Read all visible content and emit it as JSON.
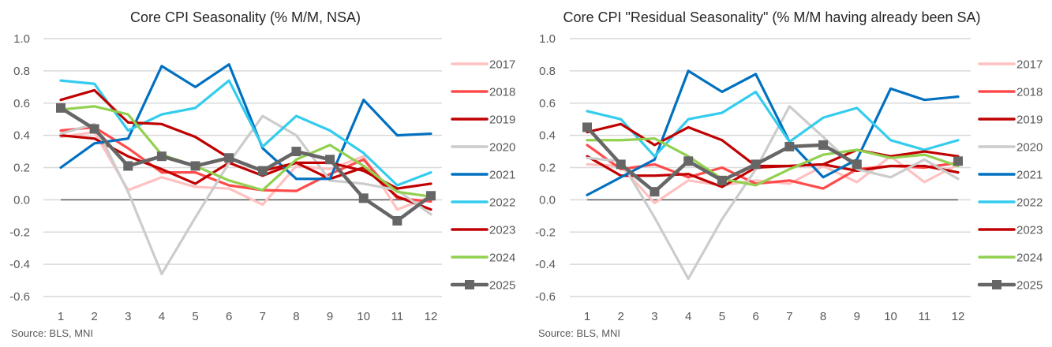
{
  "chart_data": [
    {
      "type": "line",
      "title": "Core CPI Seasonality (% M/M, NSA)",
      "xlabel": "",
      "ylabel": "",
      "x": [
        1,
        2,
        3,
        4,
        5,
        6,
        7,
        8,
        9,
        10,
        11,
        12
      ],
      "x_tick_labels": [
        "1",
        "2",
        "3",
        "4",
        "5",
        "6",
        "7",
        "8",
        "9",
        "10",
        "11",
        "12"
      ],
      "ylim": [
        -0.6,
        1.0
      ],
      "y_ticks": [
        1.0,
        0.8,
        0.6,
        0.4,
        0.2,
        0.0,
        -0.2,
        -0.4,
        -0.6
      ],
      "y_tick_labels": [
        "1.0",
        "0.8",
        "0.6",
        "0.4",
        "0.2",
        "0.0",
        "-0.2",
        "-0.4",
        "-0.6"
      ],
      "grid": true,
      "legend_position": "right",
      "source": "Source: BLS, MNI",
      "series": [
        {
          "name": "2017",
          "color": "#FFC0C0",
          "marker": false,
          "values": [
            0.39,
            0.42,
            0.06,
            0.14,
            0.08,
            0.07,
            -0.03,
            0.21,
            0.19,
            0.27,
            -0.06,
            0.02
          ]
        },
        {
          "name": "2018",
          "color": "#FF4B4B",
          "marker": false,
          "values": [
            0.43,
            0.45,
            0.32,
            0.17,
            0.17,
            0.09,
            0.06,
            0.055,
            0.16,
            0.25,
            0.01,
            -0.01
          ]
        },
        {
          "name": "2019",
          "color": "#C00000",
          "marker": false,
          "values": [
            0.4,
            0.38,
            0.27,
            0.19,
            0.1,
            0.23,
            0.15,
            0.23,
            0.13,
            0.2,
            0.02,
            -0.06
          ]
        },
        {
          "name": "2020",
          "color": "#CCCCCC",
          "marker": false,
          "values": [
            0.41,
            0.47,
            0.05,
            -0.46,
            -0.11,
            0.23,
            0.52,
            0.4,
            0.12,
            0.1,
            0.06,
            -0.09
          ]
        },
        {
          "name": "2021",
          "color": "#0070C0",
          "marker": false,
          "values": [
            0.2,
            0.35,
            0.38,
            0.83,
            0.7,
            0.84,
            0.32,
            0.13,
            0.13,
            0.62,
            0.4,
            0.41
          ]
        },
        {
          "name": "2022",
          "color": "#33CCEE",
          "marker": false,
          "values": [
            0.74,
            0.72,
            0.43,
            0.53,
            0.57,
            0.74,
            0.33,
            0.52,
            0.43,
            0.29,
            0.09,
            0.17
          ]
        },
        {
          "name": "2023",
          "color": "#C00000",
          "marker": false,
          "values": [
            0.62,
            0.68,
            0.48,
            0.47,
            0.39,
            0.26,
            0.18,
            0.23,
            0.23,
            0.18,
            0.07,
            0.1
          ]
        },
        {
          "name": "2024",
          "color": "#92D050",
          "marker": false,
          "values": [
            0.56,
            0.58,
            0.53,
            0.28,
            0.21,
            0.12,
            0.06,
            0.25,
            0.34,
            0.21,
            0.05,
            0.02
          ]
        },
        {
          "name": "2025",
          "color": "#666666",
          "marker": true,
          "values": [
            0.57,
            0.44,
            0.21,
            0.27,
            0.21,
            0.26,
            0.18,
            0.3,
            0.25,
            0.01,
            -0.13,
            0.025
          ]
        }
      ]
    },
    {
      "type": "line",
      "title": "Core CPI \"Residual Seasonality\" (% M/M having already been SA)",
      "xlabel": "",
      "ylabel": "",
      "x": [
        1,
        2,
        3,
        4,
        5,
        6,
        7,
        8,
        9,
        10,
        11,
        12
      ],
      "x_tick_labels": [
        "1",
        "2",
        "3",
        "4",
        "5",
        "6",
        "7",
        "8",
        "9",
        "10",
        "11",
        "12"
      ],
      "ylim": [
        -0.6,
        1.0
      ],
      "y_ticks": [
        1.0,
        0.8,
        0.6,
        0.4,
        0.2,
        0.0,
        -0.2,
        -0.4,
        -0.6
      ],
      "y_tick_labels": [
        "1.0",
        "0.8",
        "0.6",
        "0.4",
        "0.2",
        "0.0",
        "-0.2",
        "-0.4",
        "-0.6"
      ],
      "grid": true,
      "legend_position": "right",
      "source": "Source: BLS, MNI",
      "series": [
        {
          "name": "2017",
          "color": "#FFC0C0",
          "marker": false,
          "values": [
            0.22,
            0.21,
            -0.02,
            0.12,
            0.09,
            0.12,
            0.1,
            0.21,
            0.11,
            0.27,
            0.11,
            0.22
          ]
        },
        {
          "name": "2018",
          "color": "#FF4B4B",
          "marker": false,
          "values": [
            0.34,
            0.19,
            0.22,
            0.14,
            0.2,
            0.1,
            0.12,
            0.07,
            0.19,
            0.21,
            0.2,
            0.23
          ]
        },
        {
          "name": "2019",
          "color": "#C00000",
          "marker": false,
          "values": [
            0.27,
            0.15,
            0.15,
            0.16,
            0.08,
            0.2,
            0.21,
            0.22,
            0.18,
            0.21,
            0.21,
            0.17
          ]
        },
        {
          "name": "2020",
          "color": "#CCCCCC",
          "marker": false,
          "values": [
            0.26,
            0.24,
            -0.11,
            -0.49,
            -0.12,
            0.19,
            0.58,
            0.39,
            0.19,
            0.14,
            0.25,
            0.13
          ]
        },
        {
          "name": "2021",
          "color": "#0070C0",
          "marker": false,
          "values": [
            0.03,
            0.14,
            0.25,
            0.8,
            0.67,
            0.78,
            0.36,
            0.14,
            0.25,
            0.69,
            0.62,
            0.64
          ]
        },
        {
          "name": "2022",
          "color": "#33CCEE",
          "marker": false,
          "values": [
            0.55,
            0.5,
            0.27,
            0.5,
            0.54,
            0.67,
            0.36,
            0.51,
            0.57,
            0.37,
            0.31,
            0.37
          ]
        },
        {
          "name": "2023",
          "color": "#C00000",
          "marker": false,
          "values": [
            0.42,
            0.47,
            0.34,
            0.45,
            0.37,
            0.21,
            0.21,
            0.22,
            0.31,
            0.27,
            0.3,
            0.27
          ]
        },
        {
          "name": "2024",
          "color": "#92D050",
          "marker": false,
          "values": [
            0.37,
            0.37,
            0.38,
            0.27,
            0.13,
            0.09,
            0.19,
            0.28,
            0.31,
            0.26,
            0.28,
            0.21
          ]
        },
        {
          "name": "2025",
          "color": "#666666",
          "marker": true,
          "values": [
            0.45,
            0.22,
            0.05,
            0.24,
            0.12,
            0.22,
            0.33,
            0.34,
            0.22,
            null,
            null,
            0.24
          ]
        }
      ]
    }
  ]
}
